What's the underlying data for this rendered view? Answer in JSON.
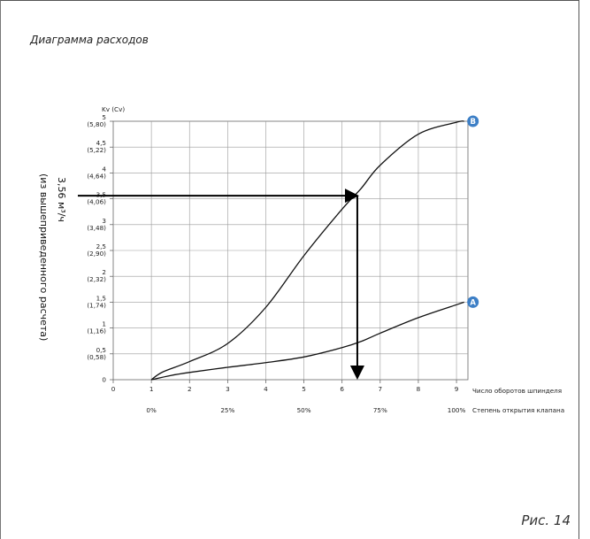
{
  "page": {
    "title": "Диаграмма расходов",
    "figure_label": "Рис. 14"
  },
  "chart_data": {
    "type": "line",
    "title": "Диаграмма расходов",
    "ylabel_top": "Kv (Cv)",
    "ylabel_side_value": "3,56 м³/ч",
    "ylabel_side_note": "(из вышеприведенного расчета)",
    "x_axis_label": "Число оборотов шпинделя",
    "x_axis2_label": "Степень открытия клапана",
    "xlim": [
      0,
      9.3
    ],
    "ylim": [
      0,
      5
    ],
    "x_ticks": [
      "0",
      "1",
      "2",
      "3",
      "4",
      "5",
      "6",
      "7",
      "8",
      "9"
    ],
    "y_ticks": [
      {
        "value": 0,
        "kv": "0",
        "cv": ""
      },
      {
        "value": 0.5,
        "kv": "0,5",
        "cv": "(0,58)"
      },
      {
        "value": 1,
        "kv": "1",
        "cv": "(1,16)"
      },
      {
        "value": 1.5,
        "kv": "1,5",
        "cv": "(1,74)"
      },
      {
        "value": 2,
        "kv": "2",
        "cv": "(2,32)"
      },
      {
        "value": 2.5,
        "kv": "2,5",
        "cv": "(2,90)"
      },
      {
        "value": 3,
        "kv": "3",
        "cv": "(3,48)"
      },
      {
        "value": 3.5,
        "kv": "3,5",
        "cv": "(4,06)"
      },
      {
        "value": 4,
        "kv": "4",
        "cv": "(4,64)"
      },
      {
        "value": 4.5,
        "kv": "4,5",
        "cv": "(5,22)"
      },
      {
        "value": 5,
        "kv": "5",
        "cv": "(5,80)"
      }
    ],
    "percent_ticks": [
      {
        "x": 1,
        "label": "0%"
      },
      {
        "x": 3,
        "label": "25%"
      },
      {
        "x": 5,
        "label": "50%"
      },
      {
        "x": 7,
        "label": "75%"
      },
      {
        "x": 9,
        "label": "100%"
      }
    ],
    "series": [
      {
        "name": "B",
        "x": [
          1,
          1.3,
          2,
          3,
          4,
          5,
          6,
          6.5,
          7,
          8,
          9,
          9.2
        ],
        "y": [
          0,
          0.15,
          0.35,
          0.7,
          1.4,
          2.4,
          3.3,
          3.7,
          4.15,
          4.75,
          4.98,
          5
        ]
      },
      {
        "name": "A",
        "x": [
          1,
          1.5,
          2,
          3,
          4,
          5,
          6,
          6.5,
          7,
          8,
          9,
          9.2
        ],
        "y": [
          0,
          0.08,
          0.14,
          0.24,
          0.33,
          0.44,
          0.62,
          0.74,
          0.9,
          1.2,
          1.45,
          1.5
        ]
      }
    ],
    "reading": {
      "y": 3.56,
      "x": 6.4
    },
    "grid": true
  }
}
